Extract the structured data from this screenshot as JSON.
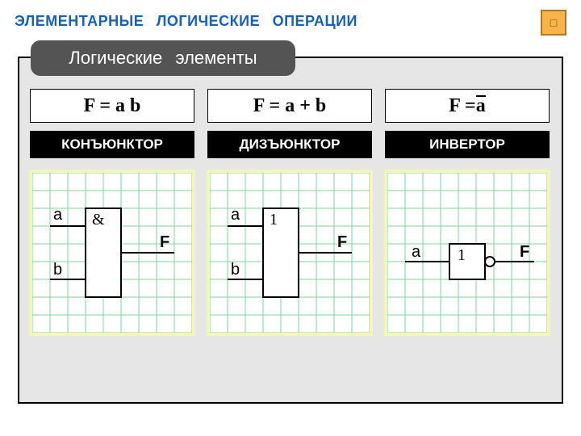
{
  "title": {
    "text": "ЭЛЕМЕНТАРНЫЕ   ЛОГИЧЕСКИЕ   ОПЕРАЦИИ",
    "color": "#1560b8",
    "fontsize": 18
  },
  "corner": {
    "glyph": "□",
    "bg": "#f6b44a",
    "border": "#b07a20",
    "text_color": "#7a4d0a"
  },
  "subtitle": {
    "text": "Логические   элементы",
    "bg": "#545454",
    "text_color": "#ffffff",
    "fontsize": 22,
    "radius": 12
  },
  "main_box": {
    "bg": "#e6e6e6",
    "border": "#000000"
  },
  "type_label_style": {
    "bg": "#000000",
    "text_color": "#ffffff",
    "fontsize": 17
  },
  "formula_style": {
    "bg": "#ffffff",
    "border": "#000000",
    "text_color": "#000000",
    "fontsize": 24
  },
  "grid": {
    "frame_color": "#f4f6b8",
    "bg": "#ffffff",
    "line_color": "#7fd59a",
    "cell": 22
  },
  "diagram_style": {
    "stroke": "#000000",
    "stroke_width": 2,
    "label_fontsize": 20,
    "gate_symbol_fontsize": 20,
    "gate_symbol_family": "Times New Roman"
  },
  "gates": [
    {
      "id": "conjunctor",
      "formula_prefix": "F = a b",
      "formula_overline": "",
      "type_label": "КОНЪЮНКТОР",
      "kind": "two-input",
      "gate_symbol": "&",
      "in_a": "a",
      "in_b": "b",
      "out": "F",
      "has_bubble": false
    },
    {
      "id": "disjunctor",
      "formula_prefix": "F = a + b",
      "formula_overline": "",
      "type_label": "ДИЗЪЮНКТОР",
      "kind": "two-input",
      "gate_symbol": "1",
      "in_a": "a",
      "in_b": "b",
      "out": "F",
      "has_bubble": false
    },
    {
      "id": "inverter",
      "formula_prefix": "F = ",
      "formula_overline": "a",
      "type_label": "ИНВЕРТОР",
      "kind": "one-input",
      "gate_symbol": "1",
      "in_a": "a",
      "out": "F",
      "has_bubble": true
    }
  ]
}
